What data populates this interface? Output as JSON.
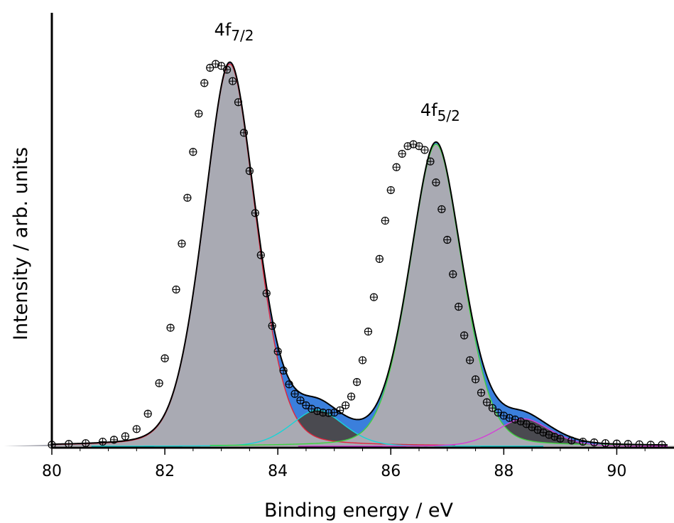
{
  "chart_data": {
    "type": "line",
    "title": "",
    "xlabel": "Binding energy / eV",
    "ylabel": "Intensity / arb. units",
    "xlim": [
      80,
      90.9
    ],
    "ylim": [
      0,
      1.05
    ],
    "xticks": [
      80,
      82,
      84,
      86,
      88,
      90
    ],
    "xtick_labels": [
      "80",
      "82",
      "84",
      "86",
      "88",
      "90"
    ],
    "yticks_shown": false,
    "grid": false,
    "legend": "none",
    "annotations": [
      {
        "main": "4f",
        "sub": "7/2",
        "x": 83.15,
        "y": 1.0
      },
      {
        "main": "4f",
        "sub": "5/2",
        "x": 86.8,
        "y": 0.79
      }
    ],
    "components": [
      {
        "center": 83.15,
        "height": 1.0,
        "sigma": 0.5,
        "gamma": 0.42,
        "eta": 0.25,
        "color": "#e0243c",
        "fill": "#a9aab3"
      },
      {
        "center": 84.7,
        "height": 0.095,
        "sigma": 0.5,
        "gamma": 0.42,
        "eta": 0.25,
        "color": "#16d4d6",
        "fill": "#4a4a50"
      },
      {
        "center": 86.8,
        "height": 0.79,
        "sigma": 0.5,
        "gamma": 0.42,
        "eta": 0.25,
        "color": "#3fd23f",
        "fill": "#a9aab3"
      },
      {
        "center": 88.35,
        "height": 0.072,
        "sigma": 0.5,
        "gamma": 0.42,
        "eta": 0.25,
        "color": "#d43ed6",
        "fill": "#4a4a50"
      }
    ],
    "envelope_fill": "#3b7fdc",
    "envelope_color": "#000000",
    "series": [
      {
        "marker": "circle-plus",
        "x": [
          80.0,
          80.3,
          80.6,
          80.9,
          81.1,
          81.3,
          81.5,
          81.7,
          81.9,
          82.0,
          82.1,
          82.2,
          82.3,
          82.4,
          82.5,
          82.6,
          82.7,
          82.8,
          82.9,
          83.0,
          83.1,
          83.2,
          83.3,
          83.4,
          83.5,
          83.6,
          83.7,
          83.8,
          83.9,
          84.0,
          84.1,
          84.2,
          84.3,
          84.4,
          84.5,
          84.6,
          84.7,
          84.8,
          84.9,
          85.0,
          85.1,
          85.2,
          85.3,
          85.4,
          85.5,
          85.6,
          85.7,
          85.8,
          85.9,
          86.0,
          86.1,
          86.2,
          86.3,
          86.4,
          86.5,
          86.6,
          86.7,
          86.8,
          86.9,
          87.0,
          87.1,
          87.2,
          87.3,
          87.4,
          87.5,
          87.6,
          87.7,
          87.8,
          87.9,
          88.0,
          88.1,
          88.2,
          88.3,
          88.4,
          88.5,
          88.6,
          88.7,
          88.8,
          88.9,
          89.0,
          89.2,
          89.4,
          89.6,
          89.8,
          90.0,
          90.2,
          90.4,
          90.6,
          90.8
        ],
        "y": [
          0.004,
          0.006,
          0.008,
          0.012,
          0.017,
          0.026,
          0.045,
          0.085,
          0.165,
          0.23,
          0.31,
          0.41,
          0.53,
          0.65,
          0.77,
          0.87,
          0.95,
          0.99,
          1.0,
          0.995,
          0.985,
          0.955,
          0.9,
          0.82,
          0.72,
          0.61,
          0.5,
          0.4,
          0.315,
          0.248,
          0.198,
          0.162,
          0.137,
          0.12,
          0.107,
          0.098,
          0.092,
          0.088,
          0.087,
          0.088,
          0.094,
          0.107,
          0.13,
          0.168,
          0.225,
          0.3,
          0.39,
          0.49,
          0.59,
          0.67,
          0.73,
          0.765,
          0.785,
          0.79,
          0.785,
          0.775,
          0.745,
          0.69,
          0.62,
          0.54,
          0.45,
          0.365,
          0.29,
          0.225,
          0.175,
          0.14,
          0.115,
          0.1,
          0.088,
          0.08,
          0.074,
          0.07,
          0.065,
          0.058,
          0.05,
          0.043,
          0.036,
          0.03,
          0.025,
          0.02,
          0.015,
          0.012,
          0.01,
          0.008,
          0.007,
          0.006,
          0.005,
          0.004,
          0.004
        ]
      }
    ]
  }
}
